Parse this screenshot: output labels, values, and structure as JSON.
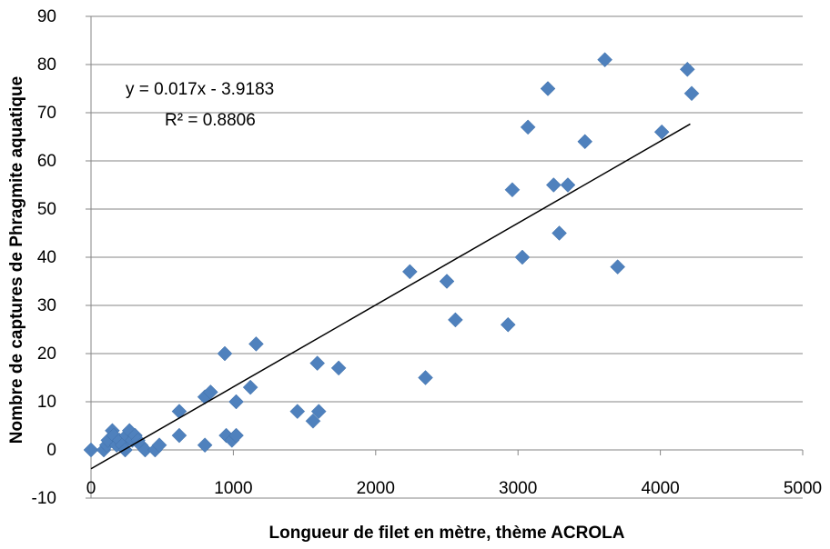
{
  "chart_data": {
    "type": "scatter",
    "title": "",
    "xlabel": "Longueur de filet en mètre, thème ACROLA",
    "ylabel": "Nombre de captures de Phragmite aquatique",
    "xlim": [
      0,
      5000
    ],
    "ylim": [
      -10,
      90
    ],
    "x_ticks": [
      0,
      1000,
      2000,
      3000,
      4000,
      5000
    ],
    "y_ticks": [
      -10,
      0,
      10,
      20,
      30,
      40,
      50,
      60,
      70,
      80,
      90
    ],
    "grid": "horizontal",
    "legend": "none",
    "marker": "diamond",
    "marker_color": "#4f81bd",
    "trendline": {
      "type": "linear",
      "slope": 0.017,
      "intercept": -3.9183,
      "x_range": [
        0,
        4210
      ],
      "equation_label": "y = 0.017x - 3.9183",
      "r2_label": "R² = 0.8806",
      "color": "#000000"
    },
    "points": [
      {
        "x": 0,
        "y": 0
      },
      {
        "x": 90,
        "y": 0
      },
      {
        "x": 110,
        "y": 1
      },
      {
        "x": 120,
        "y": 2
      },
      {
        "x": 150,
        "y": 4
      },
      {
        "x": 160,
        "y": 3
      },
      {
        "x": 180,
        "y": 1
      },
      {
        "x": 200,
        "y": 2
      },
      {
        "x": 220,
        "y": 1
      },
      {
        "x": 240,
        "y": 0
      },
      {
        "x": 250,
        "y": 3
      },
      {
        "x": 270,
        "y": 4
      },
      {
        "x": 290,
        "y": 2
      },
      {
        "x": 310,
        "y": 3
      },
      {
        "x": 330,
        "y": 2
      },
      {
        "x": 350,
        "y": 1
      },
      {
        "x": 380,
        "y": 0
      },
      {
        "x": 450,
        "y": 0
      },
      {
        "x": 480,
        "y": 1
      },
      {
        "x": 620,
        "y": 8
      },
      {
        "x": 620,
        "y": 3
      },
      {
        "x": 800,
        "y": 11
      },
      {
        "x": 800,
        "y": 1
      },
      {
        "x": 840,
        "y": 12
      },
      {
        "x": 940,
        "y": 20
      },
      {
        "x": 950,
        "y": 3
      },
      {
        "x": 990,
        "y": 2
      },
      {
        "x": 1020,
        "y": 10
      },
      {
        "x": 1020,
        "y": 3
      },
      {
        "x": 1120,
        "y": 13
      },
      {
        "x": 1160,
        "y": 22
      },
      {
        "x": 1450,
        "y": 8
      },
      {
        "x": 1560,
        "y": 6
      },
      {
        "x": 1590,
        "y": 18
      },
      {
        "x": 1600,
        "y": 8
      },
      {
        "x": 1740,
        "y": 17
      },
      {
        "x": 2240,
        "y": 37
      },
      {
        "x": 2350,
        "y": 15
      },
      {
        "x": 2500,
        "y": 35
      },
      {
        "x": 2560,
        "y": 27
      },
      {
        "x": 2930,
        "y": 26
      },
      {
        "x": 2960,
        "y": 54
      },
      {
        "x": 3030,
        "y": 40
      },
      {
        "x": 3070,
        "y": 67
      },
      {
        "x": 3210,
        "y": 75
      },
      {
        "x": 3250,
        "y": 55
      },
      {
        "x": 3290,
        "y": 45
      },
      {
        "x": 3350,
        "y": 55
      },
      {
        "x": 3470,
        "y": 64
      },
      {
        "x": 3610,
        "y": 81
      },
      {
        "x": 3700,
        "y": 38
      },
      {
        "x": 4010,
        "y": 66
      },
      {
        "x": 4190,
        "y": 79
      },
      {
        "x": 4220,
        "y": 74
      }
    ]
  }
}
